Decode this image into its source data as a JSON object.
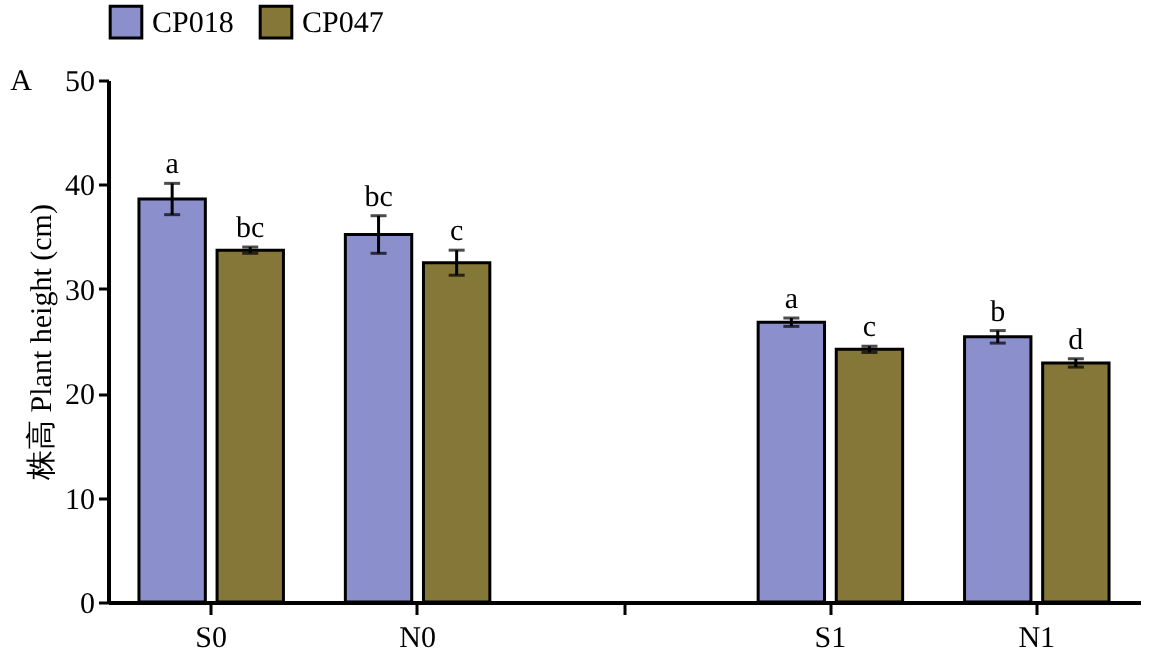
{
  "chart_data": {
    "type": "bar",
    "ylabel": "株高 Plant height (cm)",
    "annotations": [
      "A"
    ],
    "categories": [
      "S0",
      "N0",
      null,
      "S1",
      "N1"
    ],
    "series": [
      {
        "name": "CP018",
        "color": "#8b8fcc",
        "values": [
          38.6,
          35.2,
          null,
          26.8,
          25.4
        ],
        "errors": [
          1.5,
          1.8,
          null,
          0.4,
          0.6
        ],
        "value_labels": [
          "a",
          "bc",
          null,
          "a",
          "b"
        ]
      },
      {
        "name": "CP047",
        "color": "#857737",
        "values": [
          33.7,
          32.5,
          null,
          24.2,
          22.9
        ],
        "errors": [
          0.3,
          1.2,
          null,
          0.3,
          0.4
        ],
        "value_labels": [
          "bc",
          "c",
          null,
          "c",
          "d"
        ]
      }
    ],
    "ylim": [
      0,
      50
    ],
    "yticks": [
      0,
      10,
      20,
      30,
      40,
      50
    ],
    "grid": false,
    "legend": "top"
  }
}
